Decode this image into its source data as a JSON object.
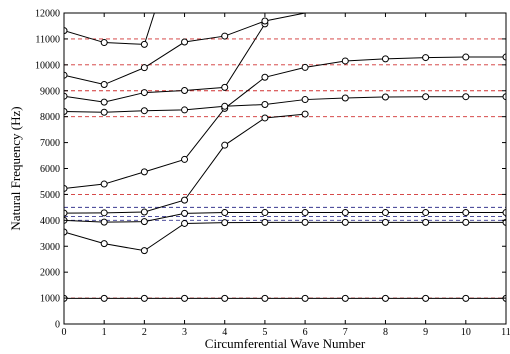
{
  "chart_data": {
    "type": "line",
    "title": "",
    "xlabel": "Circumferential Wave Number",
    "ylabel": "Natural Frequency (Hz)",
    "xlim": [
      0,
      11
    ],
    "ylim": [
      0,
      12000
    ],
    "xticks": [
      0,
      1,
      2,
      3,
      4,
      5,
      6,
      7,
      8,
      9,
      10,
      11
    ],
    "yticks": [
      0,
      1000,
      2000,
      3000,
      4000,
      5000,
      6000,
      7000,
      8000,
      9000,
      10000,
      11000,
      12000
    ],
    "grid": false,
    "legend": "none",
    "marker": "open-circle",
    "colors": {
      "series": "#000000",
      "ref_red": "#d03030",
      "ref_blue": "#3a3a90",
      "axis": "#000000"
    },
    "series": [
      {
        "x": [
          0,
          1,
          2,
          3,
          4,
          5,
          6,
          7,
          8,
          9,
          10,
          11
        ],
        "y": [
          990,
          990,
          990,
          990,
          990,
          990,
          990,
          990,
          990,
          990,
          990,
          990
        ]
      },
      {
        "x": [
          0,
          1,
          2,
          3,
          4,
          5,
          6,
          7,
          8,
          9,
          10,
          11
        ],
        "y": [
          3550,
          3100,
          2830,
          3880,
          3910,
          3920,
          3920,
          3920,
          3920,
          3920,
          3920,
          3920
        ]
      },
      {
        "x": [
          0,
          1,
          2,
          3,
          4,
          5,
          6,
          7,
          8,
          9,
          10,
          11
        ],
        "y": [
          4000,
          3930,
          3950,
          4270,
          4300,
          4300,
          4300,
          4300,
          4300,
          4300,
          4300,
          4300
        ]
      },
      {
        "x": [
          0,
          1,
          2,
          3,
          4,
          5,
          6
        ],
        "y": [
          4280,
          4290,
          4320,
          4780,
          6900,
          7950,
          8100
        ]
      },
      {
        "x": [
          0,
          1,
          2,
          3,
          4,
          5,
          6,
          7,
          8,
          9,
          10,
          11
        ],
        "y": [
          5230,
          5400,
          5870,
          6350,
          8320,
          9520,
          9900,
          10150,
          10230,
          10280,
          10300,
          10300
        ]
      },
      {
        "x": [
          0,
          1,
          2,
          3,
          4,
          5,
          6,
          7,
          8,
          9,
          10,
          11
        ],
        "y": [
          8200,
          8170,
          8230,
          8260,
          8400,
          8470,
          8660,
          8720,
          8760,
          8770,
          8770,
          8770
        ]
      },
      {
        "x": [
          0,
          1,
          2,
          3,
          4,
          5
        ],
        "y": [
          8790,
          8560,
          8930,
          9010,
          9130,
          11580
        ]
      },
      {
        "x": [
          0,
          1,
          2,
          3,
          4,
          5,
          6
        ],
        "y": [
          9600,
          9240,
          9890,
          10880,
          11110,
          11690,
          12000
        ]
      },
      {
        "x": [
          0,
          1,
          2,
          2.25
        ],
        "y": [
          11320,
          10860,
          10790,
          12000
        ]
      }
    ],
    "reference_lines": [
      {
        "y": 1000,
        "color": "red"
      },
      {
        "y": 4000,
        "color": "blue"
      },
      {
        "y": 4150,
        "color": "blue"
      },
      {
        "y": 4500,
        "color": "blue"
      },
      {
        "y": 5000,
        "color": "red"
      },
      {
        "y": 8000,
        "color": "red"
      },
      {
        "y": 9000,
        "color": "red"
      },
      {
        "y": 10000,
        "color": "red"
      },
      {
        "y": 11000,
        "color": "red"
      }
    ]
  }
}
